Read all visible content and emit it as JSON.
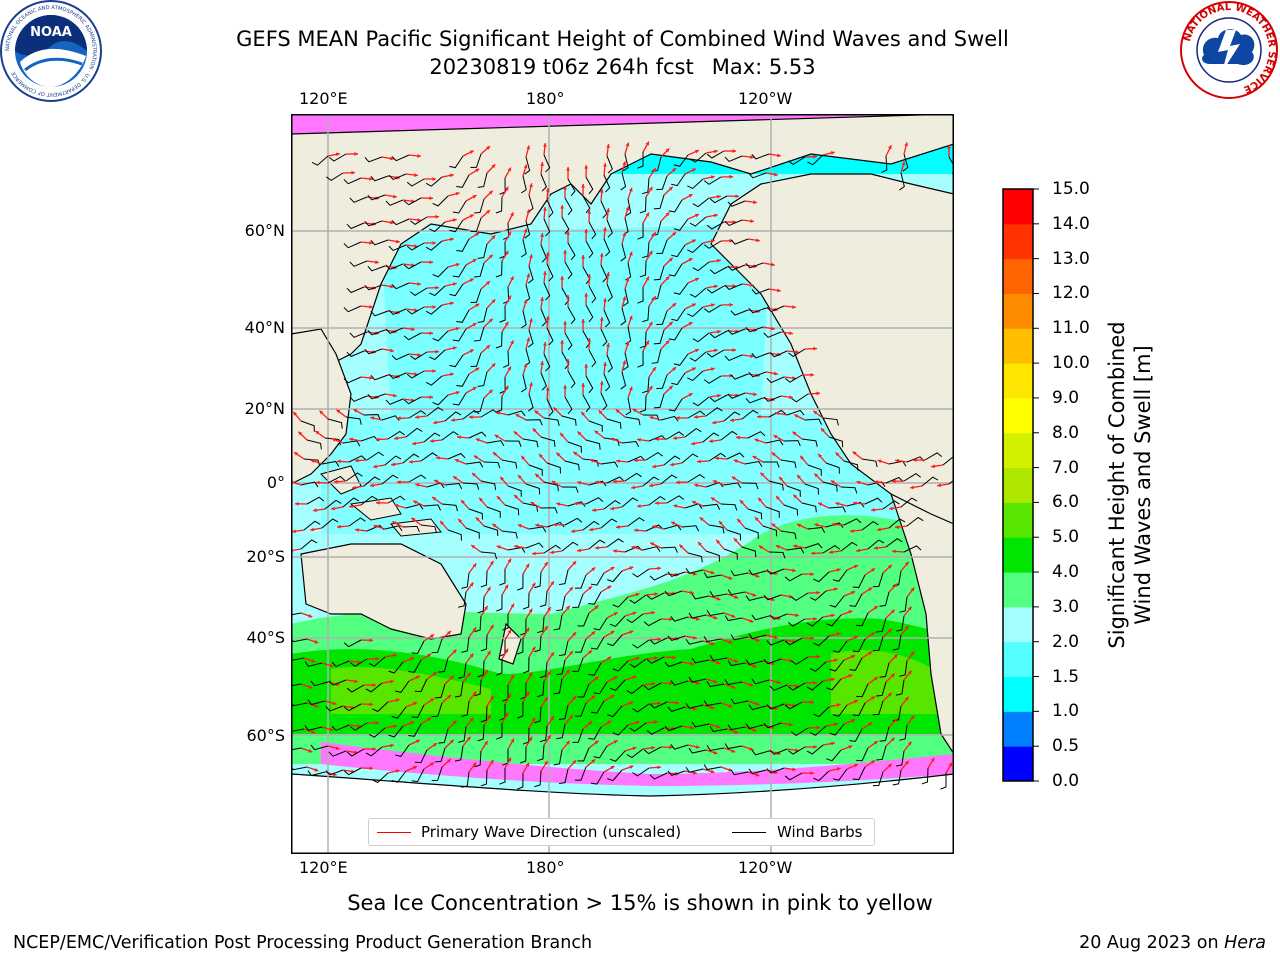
{
  "header": {
    "title": "GEFS MEAN Pacific Significant Height of Combined Wind Waves and Swell",
    "run": "20230819 t06z 264h fcst",
    "max": "Max: 5.53"
  },
  "logos": {
    "noaa": {
      "text": "NOAA",
      "ring_text": "NATIONAL OCEANIC AND ATMOSPHERIC ADMINISTRATION · U.S. DEPARTMENT OF COMMERCE"
    },
    "nws": {
      "ring_text": "NATIONAL WEATHER SERVICE"
    }
  },
  "map": {
    "lon_labels": [
      "120°E",
      "180°",
      "120°W"
    ],
    "lat_labels": [
      "60°N",
      "40°N",
      "20°N",
      "0°",
      "20°S",
      "40°S",
      "60°S"
    ],
    "legend": {
      "wave_label": "Primary Wave Direction (unscaled)",
      "barb_label": "Wind Barbs",
      "wave_color": "#ff0000",
      "barb_color": "#000000"
    },
    "colors": {
      "land": "#efedde",
      "ocean_low": "#00ffff",
      "ocean_mid": "#a6ffff",
      "ocean_high": "#53ff80",
      "ocean_peak": "#00e000"
    }
  },
  "colorbar": {
    "title_line1": "Significant Height of Combined",
    "title_line2": "Wind Waves and Swell [m]",
    "ticks": [
      "0.0",
      "0.5",
      "1.0",
      "1.5",
      "2.0",
      "3.0",
      "4.0",
      "5.0",
      "6.0",
      "7.0",
      "8.0",
      "9.0",
      "10.0",
      "11.0",
      "12.0",
      "13.0",
      "14.0",
      "15.0"
    ],
    "colors": [
      "#0000ff",
      "#0080ff",
      "#00ffff",
      "#53ffff",
      "#a6ffff",
      "#53ff80",
      "#00e600",
      "#58e600",
      "#afe600",
      "#d2f000",
      "#ffff00",
      "#ffe600",
      "#ffbe00",
      "#ff8c00",
      "#ff6400",
      "#ff3200",
      "#ff0000"
    ]
  },
  "footer": {
    "ice_note": "Sea Ice Concentration > 15% is shown in pink to yellow",
    "left": "NCEP/EMC/Verification Post Processing Product Generation Branch",
    "date": "20 Aug 2023 on",
    "machine": "Hera"
  }
}
